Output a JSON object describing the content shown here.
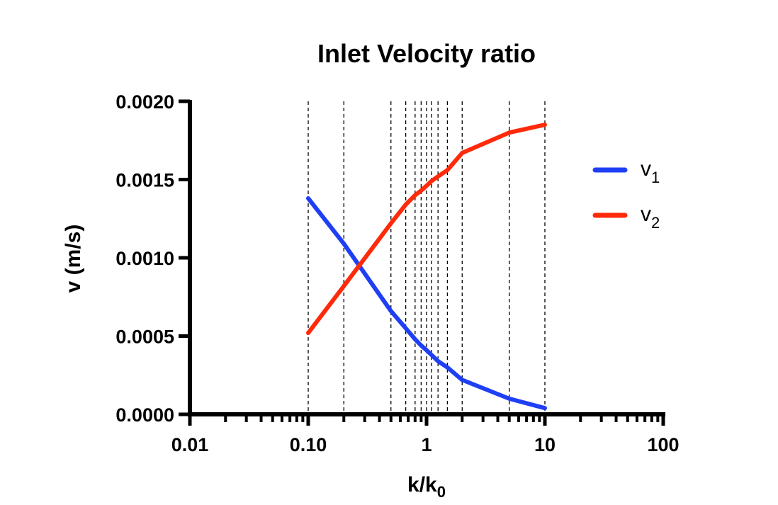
{
  "chart_data": {
    "type": "line",
    "title": "Inlet Velocity ratio",
    "xlabel": "k/k",
    "xlabel_sub": "0",
    "ylabel": "v (m/s)",
    "x_scale": "log",
    "xlim": [
      0.01,
      100
    ],
    "ylim": [
      0,
      0.002
    ],
    "x_ticks": [
      0.01,
      0.1,
      1,
      10,
      100
    ],
    "x_tick_labels": [
      "0.01",
      "0.10",
      "1",
      "10",
      "100"
    ],
    "y_ticks": [
      0,
      0.0005,
      0.001,
      0.0015,
      0.002
    ],
    "y_tick_labels": [
      "0.0000",
      "0.0005",
      "0.0010",
      "0.0015",
      "0.0020"
    ],
    "grid": false,
    "vertical_reference_lines": [
      0.1,
      0.2,
      0.5,
      0.667,
      0.8,
      0.9,
      1,
      1.1,
      1.25,
      1.5,
      2,
      5,
      10
    ],
    "x": [
      0.1,
      0.2,
      0.5,
      0.667,
      0.8,
      0.9,
      1,
      1.1,
      1.25,
      1.5,
      2,
      5,
      10
    ],
    "series": [
      {
        "name": "v",
        "name_sub": "1",
        "color": "#1f3ff5",
        "values": [
          0.00138,
          0.00109,
          0.00066,
          0.00055,
          0.00048,
          0.00044,
          0.00041,
          0.00038,
          0.00034,
          0.0003,
          0.00022,
          0.0001,
          4e-05
        ]
      },
      {
        "name": "v",
        "name_sub": "2",
        "color": "#ff2a0a",
        "values": [
          0.00052,
          0.00082,
          0.00122,
          0.00134,
          0.0014,
          0.00143,
          0.00146,
          0.00149,
          0.00152,
          0.00156,
          0.00167,
          0.0018,
          0.00185
        ]
      }
    ],
    "legend_position": "right"
  }
}
